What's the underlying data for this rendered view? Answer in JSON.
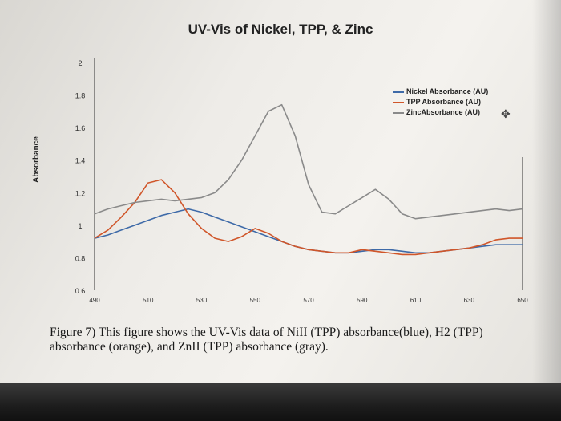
{
  "chart_data": {
    "type": "line",
    "title": "UV-Vis of Nickel, TPP, & Zinc",
    "xlabel": "",
    "ylabel": "Absorbance",
    "xlim": [
      490,
      650
    ],
    "ylim": [
      0.6,
      2
    ],
    "x_ticks": [
      "490",
      "510",
      "530",
      "550",
      "570",
      "590",
      "610",
      "630",
      "650"
    ],
    "y_ticks": [
      "0.6",
      "0.8",
      "1",
      "1.2",
      "1.4",
      "1.6",
      "1.8",
      "2"
    ],
    "legend_position": "top-right",
    "series": [
      {
        "name": "Nickel Absorbance (AU)",
        "color": "#3e6aa8",
        "x": [
          490,
          495,
          500,
          505,
          510,
          515,
          520,
          525,
          530,
          535,
          540,
          545,
          550,
          555,
          560,
          565,
          570,
          575,
          580,
          585,
          590,
          595,
          600,
          605,
          610,
          615,
          620,
          625,
          630,
          635,
          640,
          645,
          650
        ],
        "y": [
          0.92,
          0.94,
          0.97,
          1.0,
          1.03,
          1.06,
          1.08,
          1.1,
          1.08,
          1.05,
          1.02,
          0.99,
          0.96,
          0.93,
          0.9,
          0.87,
          0.85,
          0.84,
          0.83,
          0.83,
          0.84,
          0.85,
          0.85,
          0.84,
          0.83,
          0.83,
          0.84,
          0.85,
          0.86,
          0.87,
          0.88,
          0.88,
          0.88
        ]
      },
      {
        "name": "TPP Absorbance (AU)",
        "color": "#d0562a",
        "x": [
          490,
          495,
          500,
          505,
          510,
          515,
          520,
          525,
          530,
          535,
          540,
          545,
          550,
          555,
          560,
          565,
          570,
          575,
          580,
          585,
          590,
          595,
          600,
          605,
          610,
          615,
          620,
          625,
          630,
          635,
          640,
          645,
          650
        ],
        "y": [
          0.92,
          0.97,
          1.05,
          1.14,
          1.26,
          1.28,
          1.2,
          1.07,
          0.98,
          0.92,
          0.9,
          0.93,
          0.98,
          0.95,
          0.9,
          0.87,
          0.85,
          0.84,
          0.83,
          0.83,
          0.85,
          0.84,
          0.83,
          0.82,
          0.82,
          0.83,
          0.84,
          0.85,
          0.86,
          0.88,
          0.91,
          0.92,
          0.92
        ]
      },
      {
        "name": "ZincAbsorbance (AU)",
        "color": "#8a8a8a",
        "x": [
          490,
          495,
          500,
          505,
          510,
          515,
          520,
          525,
          530,
          535,
          540,
          545,
          550,
          555,
          560,
          565,
          570,
          575,
          580,
          585,
          590,
          595,
          600,
          605,
          610,
          615,
          620,
          625,
          630,
          635,
          640,
          645,
          650
        ],
        "y": [
          1.07,
          1.1,
          1.12,
          1.14,
          1.15,
          1.16,
          1.15,
          1.16,
          1.17,
          1.2,
          1.28,
          1.4,
          1.55,
          1.7,
          1.74,
          1.55,
          1.25,
          1.08,
          1.07,
          1.12,
          1.17,
          1.22,
          1.16,
          1.07,
          1.04,
          1.05,
          1.06,
          1.07,
          1.08,
          1.09,
          1.1,
          1.09,
          1.1
        ]
      }
    ]
  },
  "caption": "Figure 7) This figure shows the UV-Vis data of NiII (TPP) absorbance(blue), H2 (TPP) absorbance (orange), and ZnII (TPP) absorbance (gray).",
  "crosshair_icon": "move-icon"
}
